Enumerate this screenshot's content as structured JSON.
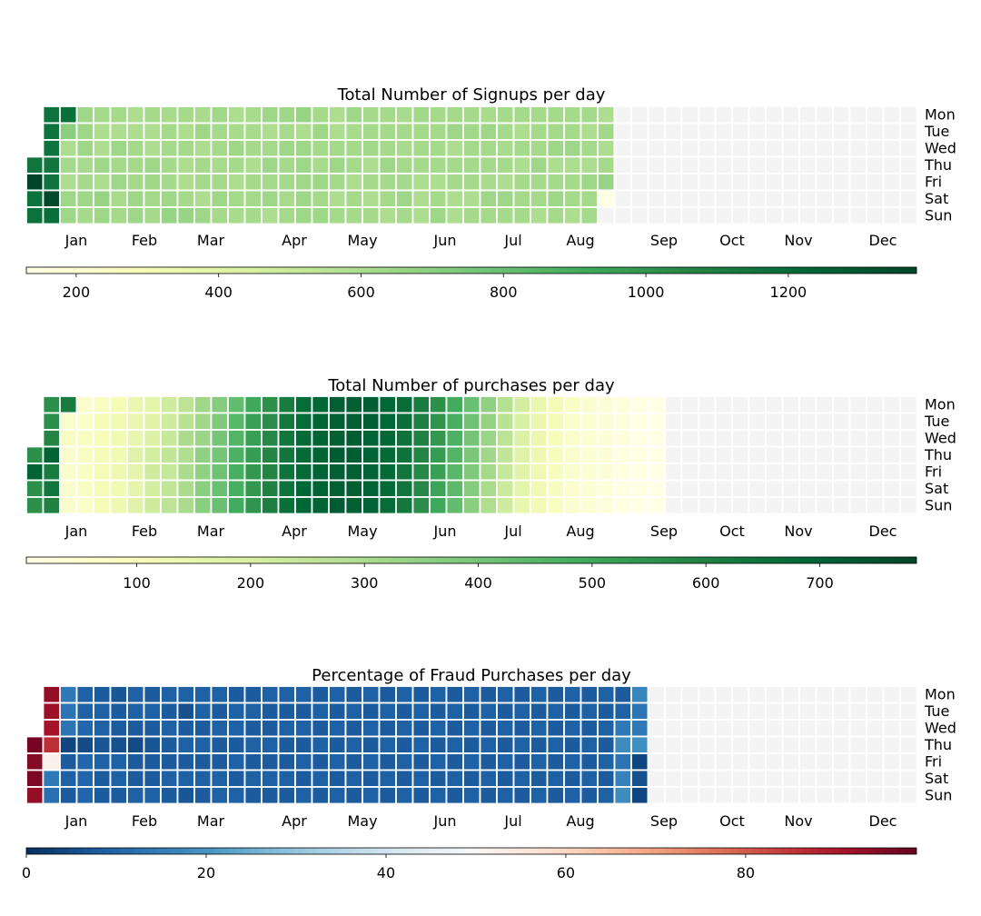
{
  "chart_data": [
    {
      "type": "heatmap",
      "title": "Total Number of Signups per day",
      "colormap": "YlGn",
      "missing_color": "#f4f4f4",
      "vmin": 130,
      "vmax": 1380,
      "colorbar_ticks": [
        200,
        400,
        600,
        800,
        1000,
        1200
      ],
      "weekday_labels": [
        "Mon",
        "Tue",
        "Wed",
        "Thu",
        "Fri",
        "Sat",
        "Sun"
      ],
      "month_labels": [
        "Jan",
        "Feb",
        "Mar",
        "Apr",
        "May",
        "Jun",
        "Jul",
        "Aug",
        "Sep",
        "Oct",
        "Nov",
        "Dec"
      ],
      "weeks": 53,
      "first_weekday_index": 3,
      "values": [
        1150,
        1390,
        1170,
        1170,
        1160,
        1160,
        1160,
        1150,
        1160,
        1360,
        1190,
        1180,
        700,
        600,
        620,
        600,
        640,
        640,
        640,
        640,
        640,
        610,
        620,
        640,
        620,
        620,
        600,
        600,
        640,
        600,
        660,
        640,
        620,
        600,
        640,
        620,
        640,
        610,
        620,
        600,
        600,
        620,
        620,
        620,
        640,
        640,
        620,
        600,
        600,
        640,
        640,
        620,
        620,
        610,
        620,
        620,
        620,
        620,
        640,
        660,
        620,
        600,
        620,
        600,
        600,
        620,
        660,
        610,
        640,
        600,
        620,
        620,
        600,
        640,
        630,
        620,
        620,
        610,
        620,
        640,
        620,
        600,
        610,
        640,
        620,
        600,
        620,
        610,
        610,
        610,
        620,
        600,
        620,
        620,
        620,
        640,
        600,
        620,
        640,
        620,
        640,
        600,
        640,
        610,
        640,
        620,
        620,
        610,
        620,
        660,
        600,
        640,
        640,
        630,
        640,
        640,
        620,
        640,
        620,
        610,
        640,
        620,
        640,
        600,
        600,
        620,
        640,
        620,
        600,
        620,
        640,
        610,
        620,
        620,
        600,
        620,
        620,
        620,
        620,
        630,
        600,
        620,
        600,
        620,
        620,
        620,
        620,
        640,
        620,
        620,
        600,
        610,
        620,
        610,
        620,
        620,
        640,
        620,
        630,
        620,
        620,
        620,
        600,
        600,
        600,
        620,
        620,
        620,
        620,
        600,
        620,
        640,
        620,
        640,
        600,
        620,
        620,
        600,
        600,
        620,
        630,
        620,
        620,
        620,
        600,
        620,
        610,
        640,
        620,
        620,
        610,
        640,
        620,
        620,
        620,
        610,
        620,
        600,
        640,
        620,
        620,
        600,
        620,
        600,
        620,
        620,
        620,
        620,
        620,
        620,
        640,
        620,
        620,
        600,
        620,
        620,
        640,
        600,
        620,
        640,
        620,
        620,
        620,
        640,
        600,
        620,
        620,
        600,
        620,
        600,
        620,
        600,
        640,
        620,
        620,
        600,
        630,
        600,
        620,
        660,
        140
      ]
    },
    {
      "type": "heatmap",
      "title": "Total Number of purchases per day",
      "colormap": "YlGn",
      "missing_color": "#f4f4f4",
      "vmin": 3,
      "vmax": 785,
      "colorbar_ticks": [
        100,
        200,
        300,
        400,
        500,
        600,
        700
      ],
      "weekday_labels": [
        "Mon",
        "Tue",
        "Wed",
        "Thu",
        "Fri",
        "Sat",
        "Sun"
      ],
      "month_labels": [
        "Jan",
        "Feb",
        "Mar",
        "Apr",
        "May",
        "Jun",
        "Jul",
        "Aug",
        "Sep",
        "Oct",
        "Nov",
        "Dec"
      ],
      "weeks": 53,
      "first_weekday_index": 3,
      "values": [
        560,
        700,
        560,
        560,
        560,
        560,
        590,
        700,
        620,
        640,
        600,
        620,
        60,
        80,
        60,
        60,
        60,
        60,
        60,
        70,
        80,
        80,
        80,
        80,
        70,
        80,
        110,
        100,
        110,
        110,
        110,
        110,
        110,
        120,
        120,
        120,
        130,
        120,
        130,
        140,
        140,
        150,
        180,
        160,
        160,
        170,
        160,
        170,
        190,
        210,
        220,
        210,
        220,
        220,
        220,
        240,
        250,
        240,
        250,
        260,
        260,
        270,
        300,
        290,
        300,
        300,
        300,
        320,
        320,
        330,
        350,
        350,
        360,
        360,
        370,
        380,
        400,
        400,
        410,
        420,
        420,
        430,
        450,
        460,
        470,
        480,
        480,
        490,
        500,
        520,
        520,
        530,
        540,
        540,
        550,
        560,
        570,
        580,
        590,
        590,
        600,
        610,
        620,
        630,
        640,
        640,
        650,
        650,
        660,
        670,
        670,
        680,
        680,
        680,
        690,
        690,
        690,
        700,
        700,
        700,
        700,
        700,
        700,
        710,
        710,
        710,
        720,
        710,
        710,
        720,
        710,
        710,
        720,
        720,
        710,
        710,
        710,
        710,
        710,
        700,
        700,
        700,
        700,
        700,
        690,
        690,
        690,
        680,
        680,
        680,
        670,
        670,
        660,
        650,
        650,
        640,
        640,
        630,
        620,
        610,
        600,
        590,
        580,
        580,
        570,
        560,
        550,
        540,
        530,
        520,
        510,
        500,
        490,
        480,
        470,
        460,
        450,
        440,
        430,
        420,
        410,
        400,
        390,
        380,
        370,
        360,
        350,
        340,
        330,
        320,
        310,
        300,
        290,
        280,
        270,
        260,
        250,
        240,
        230,
        220,
        210,
        200,
        190,
        180,
        170,
        160,
        150,
        145,
        140,
        135,
        130,
        125,
        120,
        115,
        110,
        105,
        100,
        95,
        90,
        85,
        80,
        75,
        70,
        65,
        60,
        58,
        56,
        54,
        52,
        50,
        48,
        46,
        44,
        42,
        40,
        38,
        36,
        34,
        32,
        30,
        28,
        26,
        24,
        22,
        20,
        18,
        16,
        14,
        12,
        10,
        9,
        8,
        7,
        6,
        5,
        4,
        4,
        3,
        3,
        3,
        3,
        3,
        3
      ]
    },
    {
      "type": "heatmap",
      "title": "Percentage of Fraud Purchases per day",
      "colormap": "RdBu_r",
      "missing_color": "#f4f4f4",
      "vmin": 0,
      "vmax": 99,
      "colorbar_ticks": [
        0,
        20,
        40,
        60,
        80
      ],
      "weekday_labels": [
        "Mon",
        "Tue",
        "Wed",
        "Thu",
        "Fri",
        "Sat",
        "Sun"
      ],
      "month_labels": [
        "Jan",
        "Feb",
        "Mar",
        "Apr",
        "May",
        "Jun",
        "Jul",
        "Aug",
        "Sep",
        "Oct",
        "Nov",
        "Dec"
      ],
      "weeks": 53,
      "first_weekday_index": 3,
      "values": [
        97,
        95,
        96,
        93,
        93,
        92,
        91,
        86,
        52,
        14,
        12,
        14,
        13,
        13,
        4,
        8,
        9,
        8,
        9,
        9,
        10,
        5,
        10,
        10,
        10,
        8,
        9,
        9,
        7,
        9,
        8,
        8,
        7,
        8,
        8,
        6,
        9,
        9,
        8,
        9,
        9,
        8,
        5,
        8,
        8,
        9,
        8,
        9,
        8,
        7,
        8,
        8,
        9,
        9,
        8,
        9,
        8,
        8,
        9,
        8,
        9,
        6,
        8,
        9,
        8,
        9,
        7,
        9,
        9,
        8,
        9,
        8,
        9,
        8,
        9,
        8,
        9,
        8,
        8,
        9,
        9,
        8,
        9,
        9,
        8,
        9,
        8,
        9,
        8,
        9,
        8,
        9,
        8,
        9,
        8,
        9,
        8,
        8,
        9,
        8,
        9,
        8,
        9,
        8,
        9,
        8,
        8,
        9,
        8,
        9,
        8,
        9,
        8,
        9,
        8,
        9,
        8,
        9,
        8,
        9,
        8,
        9,
        8,
        9,
        8,
        9,
        8,
        9,
        8,
        9,
        8,
        9,
        8,
        9,
        8,
        9,
        8,
        9,
        8,
        9,
        8,
        9,
        8,
        9,
        8,
        9,
        8,
        9,
        8,
        9,
        8,
        9,
        8,
        9,
        8,
        9,
        8,
        9,
        8,
        9,
        8,
        9,
        8,
        9,
        8,
        9,
        8,
        9,
        8,
        9,
        8,
        9,
        8,
        9,
        8,
        9,
        8,
        9,
        8,
        9,
        8,
        9,
        8,
        9,
        8,
        9,
        8,
        9,
        8,
        9,
        8,
        9,
        8,
        9,
        8,
        9,
        8,
        9,
        8,
        9,
        8,
        9,
        8,
        9,
        8,
        9,
        8,
        9,
        8,
        9,
        8,
        9,
        8,
        9,
        8,
        9,
        8,
        9,
        8,
        9,
        8,
        9,
        8,
        9,
        8,
        9,
        8,
        9,
        8,
        9,
        8,
        9,
        8,
        9,
        8,
        9,
        8,
        9,
        8,
        9,
        8,
        9,
        8,
        9,
        14,
        18,
        13,
        16,
        18,
        17,
        13,
        14,
        19,
        4,
        6,
        4
      ]
    }
  ]
}
